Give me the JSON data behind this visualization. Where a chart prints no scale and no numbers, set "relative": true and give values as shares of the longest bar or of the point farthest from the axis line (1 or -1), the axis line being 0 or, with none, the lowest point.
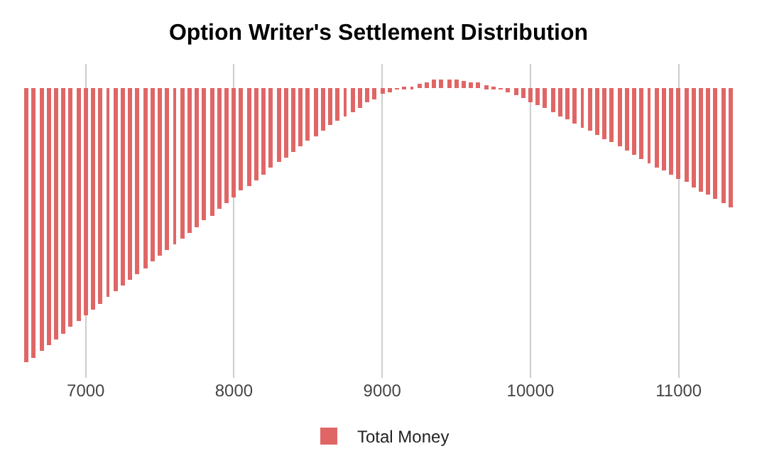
{
  "chart_data": {
    "type": "bar",
    "title": "Option Writer's Settlement Distribution",
    "relative": true,
    "x": [
      6600,
      6650,
      6700,
      6750,
      6800,
      6850,
      6900,
      6950,
      7000,
      7050,
      7100,
      7150,
      7200,
      7250,
      7300,
      7350,
      7400,
      7450,
      7500,
      7550,
      7600,
      7650,
      7700,
      7750,
      7800,
      7850,
      7900,
      7950,
      8000,
      8050,
      8100,
      8150,
      8200,
      8250,
      8300,
      8350,
      8400,
      8450,
      8500,
      8550,
      8600,
      8650,
      8700,
      8750,
      8800,
      8850,
      8900,
      8950,
      9000,
      9050,
      9100,
      9150,
      9200,
      9250,
      9300,
      9350,
      9400,
      9450,
      9500,
      9550,
      9600,
      9650,
      9700,
      9750,
      9800,
      9850,
      9900,
      9950,
      10000,
      10050,
      10100,
      10150,
      10200,
      10250,
      10300,
      10350,
      10400,
      10450,
      10500,
      10550,
      10600,
      10650,
      10700,
      10750,
      10800,
      10850,
      10900,
      10950,
      11000,
      11050,
      11100,
      11150,
      11200,
      11250,
      11300,
      11350
    ],
    "series": [
      {
        "name": "Total Money",
        "color": "#e06666",
        "values": [
          -1.0,
          -0.983,
          -0.96,
          -0.936,
          -0.917,
          -0.894,
          -0.871,
          -0.852,
          -0.829,
          -0.81,
          -0.787,
          -0.763,
          -0.743,
          -0.721,
          -0.698,
          -0.678,
          -0.656,
          -0.634,
          -0.614,
          -0.592,
          -0.572,
          -0.548,
          -0.526,
          -0.506,
          -0.483,
          -0.464,
          -0.441,
          -0.419,
          -0.399,
          -0.375,
          -0.357,
          -0.335,
          -0.315,
          -0.291,
          -0.271,
          -0.254,
          -0.231,
          -0.212,
          -0.193,
          -0.174,
          -0.156,
          -0.137,
          -0.118,
          -0.103,
          -0.086,
          -0.07,
          -0.051,
          -0.039,
          -0.023,
          -0.014,
          -0.005,
          0.002,
          0.006,
          0.014,
          0.02,
          0.031,
          0.031,
          0.031,
          0.031,
          0.026,
          0.023,
          0.019,
          0.008,
          0.001,
          -0.003,
          -0.016,
          -0.026,
          -0.036,
          -0.05,
          -0.064,
          -0.073,
          -0.087,
          -0.101,
          -0.115,
          -0.129,
          -0.143,
          -0.157,
          -0.171,
          -0.185,
          -0.199,
          -0.213,
          -0.227,
          -0.246,
          -0.26,
          -0.274,
          -0.288,
          -0.302,
          -0.316,
          -0.33,
          -0.344,
          -0.363,
          -0.377,
          -0.391,
          -0.405,
          -0.419,
          -0.433
        ]
      }
    ],
    "xlim": [
      6575,
      11375
    ],
    "xticks": [
      7000,
      8000,
      9000,
      10000,
      11000
    ],
    "grid": "x",
    "legend": "bottom"
  }
}
